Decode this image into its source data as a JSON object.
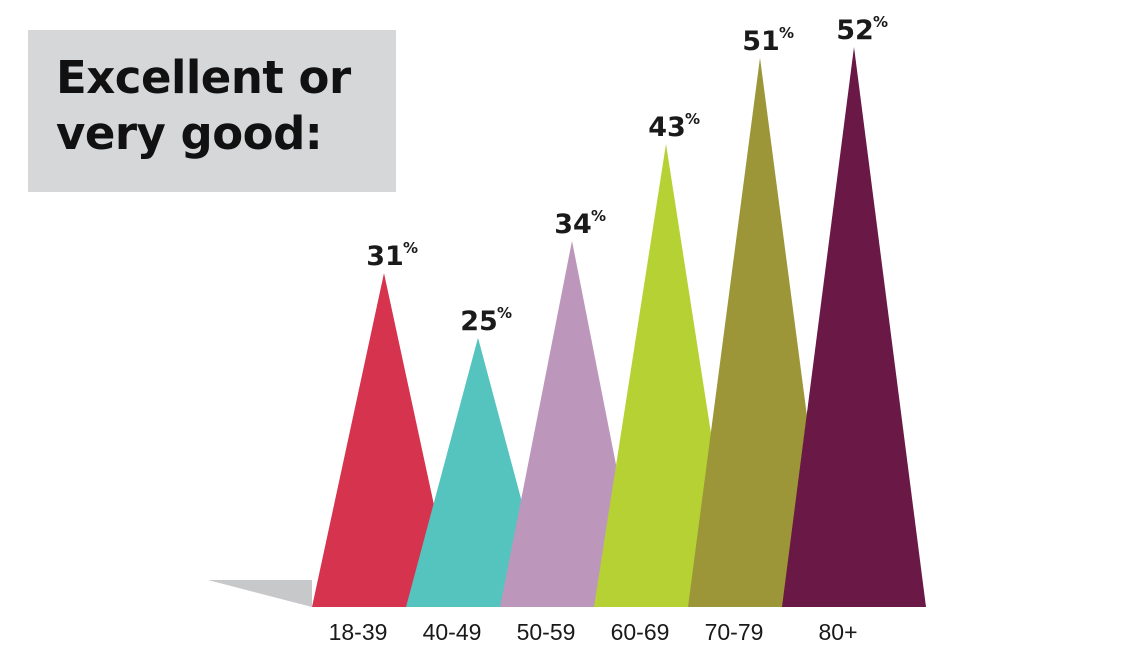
{
  "chart_data": {
    "type": "bar",
    "title": "Excellent or very good:",
    "title_lines": [
      "Excellent or",
      "very good:"
    ],
    "categories": [
      "18-39",
      "40-49",
      "50-59",
      "60-69",
      "70-79",
      "80+"
    ],
    "values": [
      31,
      25,
      34,
      43,
      51,
      52
    ],
    "value_labels": [
      "31",
      "25",
      "34",
      "43",
      "51",
      "52"
    ],
    "value_suffix": "%",
    "ylim": [
      0,
      52
    ],
    "colors": [
      "#d6334e",
      "#55c3be",
      "#bc97bb",
      "#b6d134",
      "#9c9638",
      "#6a1846"
    ],
    "grid": false,
    "legend": "none"
  }
}
